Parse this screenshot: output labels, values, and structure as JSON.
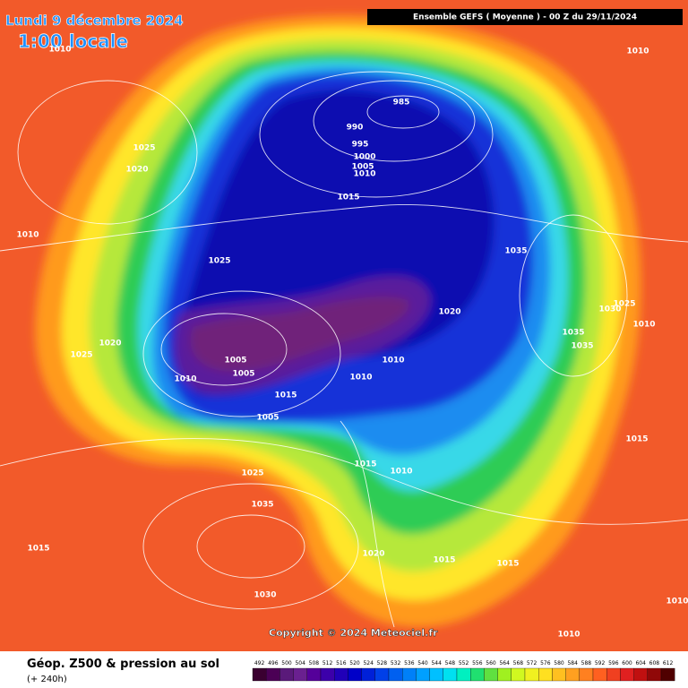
{
  "title": {
    "date": "Lundi 9 décembre 2024",
    "time": "1:00 locale"
  },
  "header": "Ensemble GEFS  ( Moyenne )  -  00 Z du 29/11/2024",
  "isobars": [
    1010,
    1010,
    985,
    990,
    995,
    1000,
    1005,
    1010,
    1025,
    1020,
    1015,
    1010,
    1035,
    1025,
    1020,
    1025,
    1030,
    1010,
    1035,
    1035,
    1020,
    1025,
    1005,
    1010,
    1005,
    1010,
    1010,
    1015,
    1005,
    1015,
    1015,
    1010,
    1025,
    1035,
    1015,
    1020,
    1015,
    1015,
    1030,
    1010,
    1010
  ],
  "copyright": "Copyright © 2024 Meteociel.fr",
  "footer": {
    "title": "Géop. Z500 & pression au sol",
    "lead": "(+ 240h)"
  },
  "legend": [
    492,
    496,
    500,
    504,
    508,
    512,
    516,
    520,
    524,
    528,
    532,
    536,
    540,
    544,
    548,
    552,
    556,
    560,
    564,
    568,
    572,
    576,
    580,
    584,
    588,
    592,
    596,
    600,
    604,
    608,
    612
  ]
}
